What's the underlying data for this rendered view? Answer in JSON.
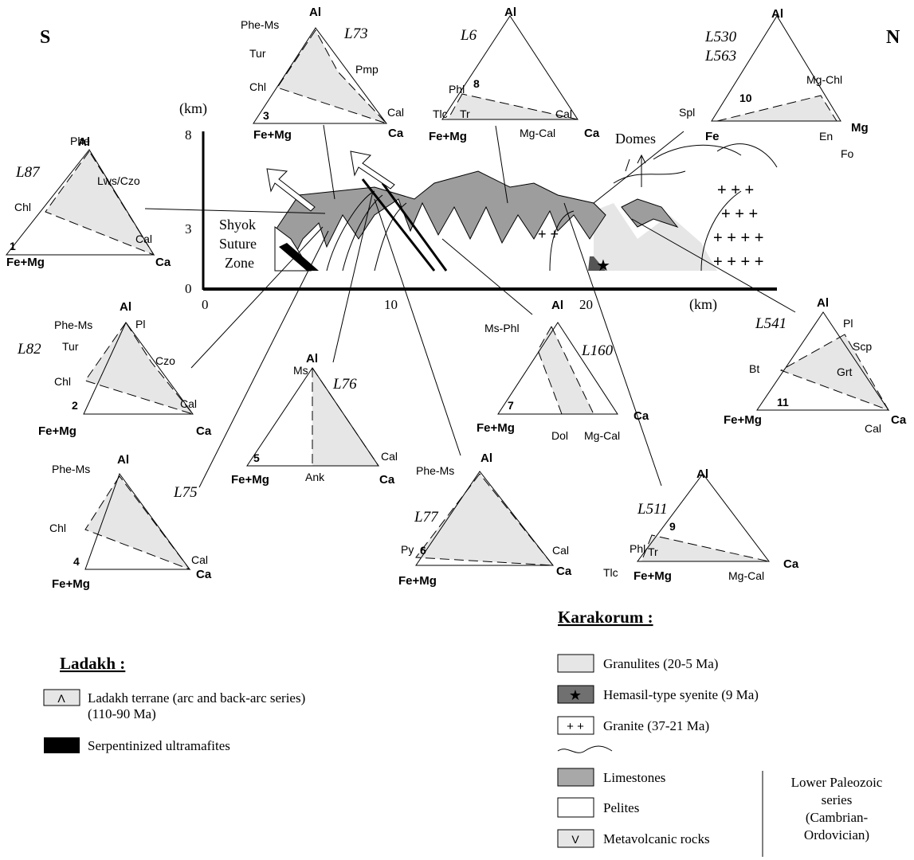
{
  "directions": {
    "south": "S",
    "north": "N"
  },
  "cross_section": {
    "y_axis_label": "(km)",
    "y_ticks": [
      "8",
      "3",
      "0"
    ],
    "x_axis_label": "(km)",
    "x_ticks": [
      "0",
      "10",
      "20"
    ],
    "zone_label": [
      "Shyok",
      "Suture",
      "Zone"
    ],
    "domes_label": "Domes"
  },
  "triangles": [
    {
      "number": "1",
      "samples": [
        "L87"
      ],
      "apices": [
        "Al",
        "Fe+Mg",
        "Ca"
      ],
      "minerals": [
        "Phe",
        "Lws/Czo",
        "Chl",
        "Cal"
      ]
    },
    {
      "number": "2",
      "samples": [
        "L82"
      ],
      "apices": [
        "Al",
        "Fe+Mg",
        "Ca"
      ],
      "minerals": [
        "Phe-Ms",
        "Pl",
        "Tur",
        "Czo",
        "Chl",
        "Cal"
      ]
    },
    {
      "number": "3",
      "samples": [
        "L73"
      ],
      "apices": [
        "Al",
        "Fe+Mg",
        "Ca"
      ],
      "minerals": [
        "Phe-Ms",
        "Tur",
        "Pmp",
        "Chl",
        "Cal"
      ]
    },
    {
      "number": "4",
      "samples": [
        "L75"
      ],
      "apices": [
        "Al",
        "Fe+Mg",
        "Ca"
      ],
      "minerals": [
        "Phe-Ms",
        "Chl",
        "Cal"
      ]
    },
    {
      "number": "5",
      "samples": [
        "L76"
      ],
      "apices": [
        "Al",
        "Fe+Mg",
        "Ca"
      ],
      "minerals": [
        "Ms",
        "Ank",
        "Cal"
      ]
    },
    {
      "number": "6",
      "samples": [
        "L77"
      ],
      "apices": [
        "Al",
        "Fe+Mg",
        "Ca"
      ],
      "minerals": [
        "Phe-Ms",
        "Py",
        "Cal"
      ]
    },
    {
      "number": "7",
      "samples": [
        "L160"
      ],
      "apices": [
        "Al",
        "Fe+Mg",
        "Ca"
      ],
      "minerals": [
        "Ms-Phl",
        "Dol",
        "Mg-Cal"
      ]
    },
    {
      "number": "8",
      "samples": [
        "L6"
      ],
      "apices": [
        "Al",
        "Fe+Mg",
        "Ca"
      ],
      "minerals": [
        "Phl",
        "Tlc",
        "Tr",
        "Cal",
        "Mg-Cal"
      ]
    },
    {
      "number": "9",
      "samples": [
        "L511"
      ],
      "apices": [
        "Al",
        "Fe+Mg",
        "Ca"
      ],
      "minerals": [
        "Phl",
        "Tr",
        "Tlc",
        "Mg-Cal"
      ]
    },
    {
      "number": "10",
      "samples": [
        "L530",
        "L563"
      ],
      "apices": [
        "Al",
        "Fe",
        "Mg"
      ],
      "minerals": [
        "Spl",
        "Mg-Chl",
        "En",
        "Fo"
      ]
    },
    {
      "number": "11",
      "samples": [
        "L541"
      ],
      "apices": [
        "Al",
        "Fe+Mg",
        "Ca"
      ],
      "minerals": [
        "Pl",
        "Scp",
        "Bt",
        "Grt",
        "Cal"
      ]
    }
  ],
  "legend": {
    "ladakh": {
      "title": "Ladakh :",
      "items": [
        {
          "symbol": "Λ",
          "lines": [
            "Ladakh terrane (arc and back-arc series)",
            "(110-90 Ma)"
          ]
        },
        {
          "lines": [
            "Serpentinized ultramafites"
          ]
        }
      ]
    },
    "karakorum": {
      "title": "Karakorum :",
      "items": [
        {
          "lines": [
            "Granulites (20-5 Ma)"
          ]
        },
        {
          "symbol": "★",
          "lines": [
            "Hemasil-type syenite (9 Ma)"
          ]
        },
        {
          "symbol": "+ +",
          "lines": [
            "Granite (37-21 Ma)"
          ]
        },
        {
          "lines": [
            "Limestones"
          ]
        },
        {
          "lines": [
            "Pelites"
          ]
        },
        {
          "symbol": "V",
          "lines": [
            "Metavolcanic rocks"
          ]
        }
      ],
      "series_label": [
        "Lower Paleozoic",
        "series",
        "(Cambrian-",
        "Ordovician)"
      ]
    }
  }
}
